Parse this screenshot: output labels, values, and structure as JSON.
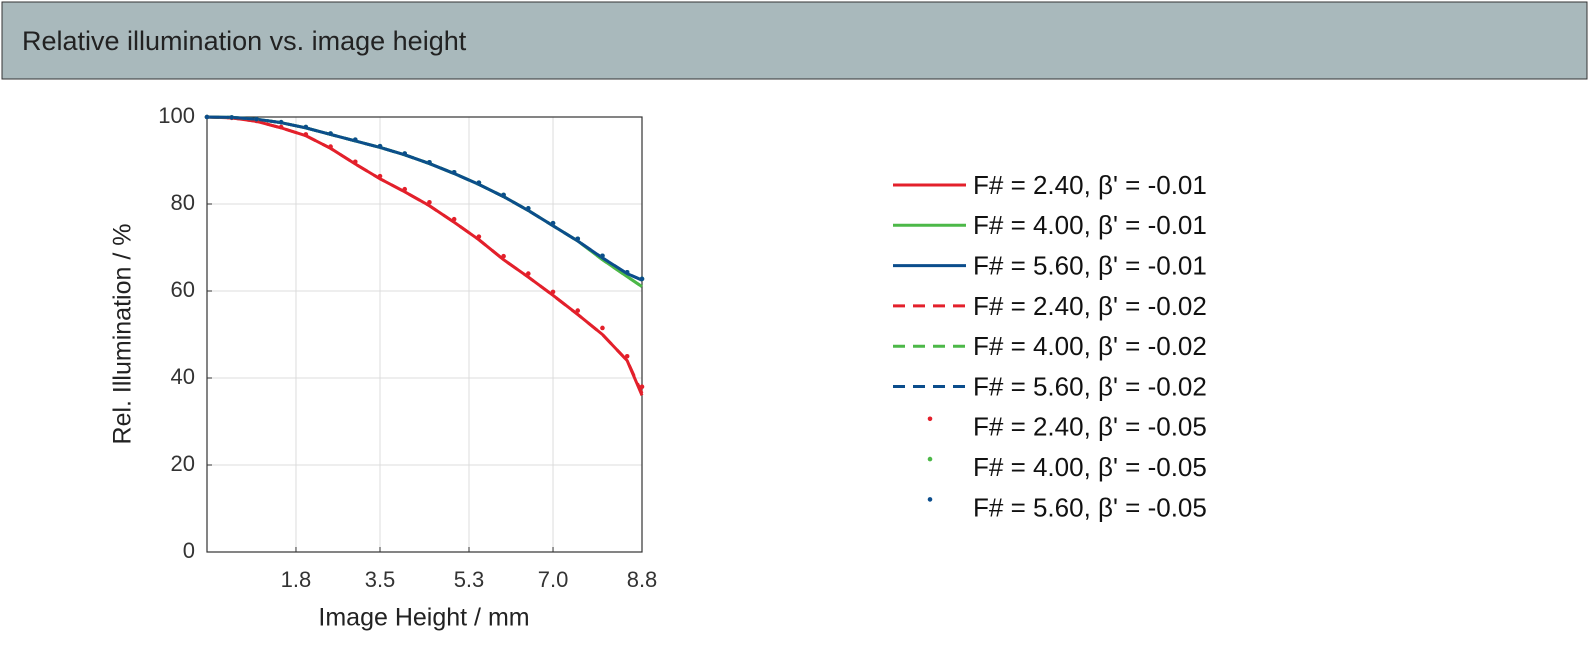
{
  "chart_data": {
    "type": "line",
    "title": "Relative illumination vs. image height",
    "x_label": "Image Height / mm",
    "y_label": "Rel. Illumination / %",
    "x": [
      0,
      0.5,
      1.0,
      1.5,
      2.0,
      2.5,
      3.0,
      3.5,
      4.0,
      4.5,
      5.0,
      5.5,
      6.0,
      6.5,
      7.0,
      7.5,
      8.0,
      8.5,
      8.8
    ],
    "xlim": [
      0,
      8.8
    ],
    "xticks": [
      1.8,
      3.5,
      5.3,
      {
        "value": 7.0,
        "label": "7.0"
      },
      8.8
    ],
    "ylim": [
      0,
      100
    ],
    "yticks": [
      0,
      20,
      40,
      60,
      80,
      100
    ],
    "grid": true,
    "series": [
      {
        "name": "F# = 2.40, β' = -0.01",
        "color": "#e3202b",
        "line_style": "solid",
        "values": [
          100,
          99.8,
          99,
          97.5,
          95.7,
          92.8,
          89.2,
          85.8,
          82.8,
          79.6,
          75.8,
          71.8,
          67.2,
          63.2,
          59,
          54.6,
          50,
          44,
          36
        ]
      },
      {
        "name": "F# = 4.00, β' = -0.01",
        "color": "#4cb848",
        "line_style": "solid",
        "values": [
          100,
          99.9,
          99.5,
          98.7,
          97.5,
          96,
          94.5,
          93,
          91.3,
          89.3,
          87,
          84.5,
          81.7,
          78.5,
          75,
          71.5,
          67.2,
          63.3,
          61
        ]
      },
      {
        "name": "F# = 5.60, β' = -0.01",
        "color": "#0b4d8c",
        "line_style": "solid",
        "values": [
          100,
          99.9,
          99.5,
          98.7,
          97.5,
          96,
          94.5,
          93,
          91.3,
          89.3,
          87,
          84.5,
          81.7,
          78.5,
          75,
          71.5,
          67.6,
          64,
          62.5
        ]
      },
      {
        "name": "F# = 2.40, β' = -0.02",
        "color": "#e3202b",
        "line_style": "dashed",
        "values": [
          100,
          99.8,
          99,
          97.5,
          95.7,
          92.8,
          89.2,
          85.8,
          82.8,
          79.6,
          75.8,
          71.8,
          67.2,
          63.2,
          59,
          54.6,
          50,
          44,
          36.5
        ]
      },
      {
        "name": "F# = 4.00, β' = -0.02",
        "color": "#4cb848",
        "line_style": "dashed",
        "values": [
          100,
          99.9,
          99.5,
          98.7,
          97.5,
          96,
          94.5,
          93,
          91.3,
          89.3,
          87,
          84.5,
          81.7,
          78.5,
          75,
          71.5,
          67.2,
          63.3,
          61
        ]
      },
      {
        "name": "F# = 5.60, β' = -0.02",
        "color": "#0b4d8c",
        "line_style": "dashed",
        "values": [
          100,
          99.9,
          99.5,
          98.7,
          97.5,
          96,
          94.5,
          93,
          91.3,
          89.3,
          87,
          84.5,
          81.7,
          78.5,
          75,
          71.5,
          67.6,
          64,
          62.5
        ]
      },
      {
        "name": "F# = 2.40, β' = -0.05",
        "color": "#e3202b",
        "line_style": "dots",
        "values": [
          100,
          99.8,
          99.1,
          97.7,
          96,
          93.2,
          89.7,
          86.4,
          83.4,
          80.4,
          76.5,
          72.5,
          68,
          64,
          59.8,
          55.5,
          51.5,
          45,
          38
        ]
      },
      {
        "name": "F# = 4.00, β' = -0.05",
        "color": "#4cb848",
        "line_style": "dots",
        "values": [
          100,
          99.9,
          99.5,
          98.8,
          97.7,
          96.2,
          94.8,
          93.3,
          91.6,
          89.6,
          87.3,
          84.9,
          82.1,
          79,
          75.6,
          72,
          68.1,
          64.3,
          62.8
        ]
      },
      {
        "name": "F# = 5.60, β' = -0.05",
        "color": "#0b4d8c",
        "line_style": "dots",
        "values": [
          100,
          99.9,
          99.5,
          98.8,
          97.7,
          96.2,
          94.8,
          93.3,
          91.6,
          89.6,
          87.3,
          84.9,
          82.1,
          79,
          75.6,
          72,
          68.1,
          64.3,
          62.8
        ]
      }
    ]
  }
}
